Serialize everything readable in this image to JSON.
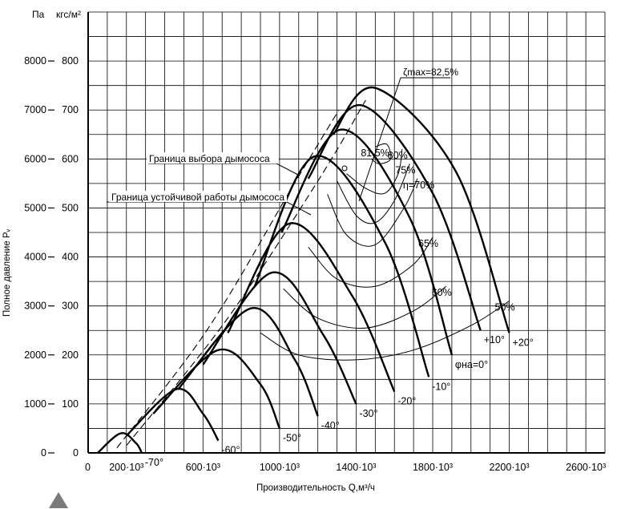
{
  "chart_data": {
    "type": "line",
    "x_axis": {
      "min": 0,
      "max": 2700000,
      "origin_label": "0",
      "ticks": [
        {
          "value": 200000,
          "label": "200·10³"
        },
        {
          "value": 600000,
          "label": "600·10³"
        },
        {
          "value": 1000000,
          "label": "1000·10³"
        },
        {
          "value": 1400000,
          "label": "1400·10³"
        },
        {
          "value": 1800000,
          "label": "1800·10³"
        },
        {
          "value": 2200000,
          "label": "2200·10³"
        },
        {
          "value": 2600000,
          "label": "2600·10³"
        }
      ],
      "title": "Производительность  Q,м³/ч"
    },
    "y_axis_pa": {
      "unit": "Па",
      "ticks": [
        "0",
        "1000",
        "2000",
        "3000",
        "4000",
        "5000",
        "6000",
        "7000",
        "8000"
      ],
      "title": "Полное давление  Pᵥ"
    },
    "y_axis_kgf": {
      "unit": "кгс/м²",
      "min": 0,
      "max": 900,
      "ticks": [
        "0",
        "100",
        "200",
        "300",
        "400",
        "500",
        "600",
        "700",
        "800"
      ]
    },
    "blade_curves": [
      {
        "label": "-70°",
        "points": [
          [
            50000,
            0
          ],
          [
            170000,
            40
          ],
          [
            250000,
            20
          ],
          [
            280000,
            0
          ]
        ]
      },
      {
        "label": "-60°",
        "points": [
          [
            200000,
            35
          ],
          [
            460000,
            130
          ],
          [
            600000,
            80
          ],
          [
            680000,
            25
          ]
        ]
      },
      {
        "label": "-50°",
        "points": [
          [
            340000,
            80
          ],
          [
            680000,
            210
          ],
          [
            900000,
            140
          ],
          [
            1000000,
            50
          ]
        ]
      },
      {
        "label": "-40°",
        "points": [
          [
            470000,
            130
          ],
          [
            850000,
            295
          ],
          [
            1080000,
            190
          ],
          [
            1200000,
            75
          ]
        ]
      },
      {
        "label": "-30°",
        "points": [
          [
            600000,
            180
          ],
          [
            960000,
            368
          ],
          [
            1230000,
            240
          ],
          [
            1400000,
            100
          ]
        ]
      },
      {
        "label": "-20°",
        "points": [
          [
            730000,
            245
          ],
          [
            1050000,
            468
          ],
          [
            1380000,
            320
          ],
          [
            1600000,
            125
          ]
        ]
      },
      {
        "label": "-10°",
        "points": [
          [
            870000,
            340
          ],
          [
            1180000,
            605
          ],
          [
            1550000,
            430
          ],
          [
            1780000,
            155
          ]
        ]
      },
      {
        "label": "φна=0°",
        "points": [
          [
            1010000,
            450
          ],
          [
            1320000,
            660
          ],
          [
            1680000,
            480
          ],
          [
            1900000,
            200
          ]
        ]
      },
      {
        "label": "+10°",
        "points": [
          [
            1150000,
            560
          ],
          [
            1420000,
            710
          ],
          [
            1800000,
            530
          ],
          [
            2050000,
            250
          ]
        ]
      },
      {
        "label": "+20°",
        "points": [
          [
            1280000,
            650
          ],
          [
            1500000,
            745
          ],
          [
            1920000,
            575
          ],
          [
            2200000,
            245
          ]
        ]
      }
    ],
    "efficiency_curves": [
      {
        "label": "η=70%",
        "points": [
          [
            1250000,
            528
          ],
          [
            1350000,
            445
          ],
          [
            1500000,
            425
          ],
          [
            1650000,
            500
          ],
          [
            1720000,
            560
          ]
        ]
      },
      {
        "label": "75%",
        "points": [
          [
            1300000,
            555
          ],
          [
            1400000,
            485
          ],
          [
            1500000,
            470
          ],
          [
            1600000,
            515
          ],
          [
            1680000,
            590
          ]
        ]
      },
      {
        "label": "80%",
        "points": [
          [
            1350000,
            570
          ],
          [
            1450000,
            540
          ],
          [
            1550000,
            530
          ],
          [
            1620000,
            570
          ],
          [
            1640000,
            620
          ]
        ]
      },
      {
        "label": "81,5%",
        "points": [
          [
            1480000,
            600
          ],
          [
            1520000,
            590
          ],
          [
            1580000,
            600
          ],
          [
            1560000,
            630
          ],
          [
            1500000,
            625
          ]
        ]
      },
      {
        "label": "65%",
        "points": [
          [
            1150000,
            420
          ],
          [
            1300000,
            355
          ],
          [
            1500000,
            340
          ],
          [
            1700000,
            385
          ],
          [
            1800000,
            440
          ]
        ]
      },
      {
        "label": "60%",
        "points": [
          [
            1020000,
            335
          ],
          [
            1200000,
            275
          ],
          [
            1450000,
            255
          ],
          [
            1700000,
            290
          ],
          [
            1870000,
            340
          ]
        ]
      },
      {
        "label": "50%",
        "points": [
          [
            900000,
            245
          ],
          [
            1100000,
            200
          ],
          [
            1400000,
            190
          ],
          [
            1700000,
            210
          ],
          [
            2000000,
            260
          ],
          [
            2200000,
            310
          ]
        ]
      }
    ],
    "boundary_lines": [
      {
        "label": "Граница выбора дымососа",
        "points": [
          [
            150000,
            10
          ],
          [
            620000,
            250
          ],
          [
            1070000,
            545
          ],
          [
            1310000,
            700
          ]
        ]
      },
      {
        "label": "Граница устойчивой работы дымососа",
        "points": [
          [
            200000,
            15
          ],
          [
            720000,
            270
          ],
          [
            1200000,
            555
          ],
          [
            1450000,
            720
          ]
        ]
      }
    ],
    "annotations": [
      {
        "label": "ζmax=82,5%"
      },
      {
        "label": "Граница выбора дымососа"
      },
      {
        "label": "Граница устойчивой работы дымососа"
      }
    ],
    "grid": true
  }
}
